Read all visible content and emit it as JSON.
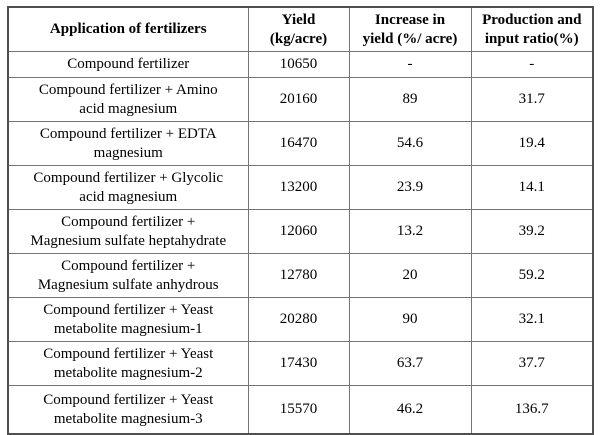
{
  "colors": {
    "background": "#ffffff",
    "text": "#000000",
    "border_outer": "#4f4f4f",
    "border_inner": "#757575"
  },
  "table": {
    "columns": [
      {
        "label": "Application of fertilizers"
      },
      {
        "label": "Yield\n(kg/acre)"
      },
      {
        "label": "Increase in\nyield (%/ acre)"
      },
      {
        "label": "Production and\ninput ratio(%)"
      }
    ],
    "rows": [
      {
        "application": "Compound fertilizer",
        "yield": "10650",
        "increase": "-",
        "ratio": "-"
      },
      {
        "application": "Compound fertilizer + Amino\nacid magnesium",
        "yield": "20160",
        "increase": "89",
        "ratio": "31.7"
      },
      {
        "application": "Compound fertilizer + EDTA\nmagnesium",
        "yield": "16470",
        "increase": "54.6",
        "ratio": "19.4"
      },
      {
        "application": "Compound fertilizer + Glycolic\nacid magnesium",
        "yield": "13200",
        "increase": "23.9",
        "ratio": "14.1"
      },
      {
        "application": "Compound fertilizer +\nMagnesium sulfate heptahydrate",
        "yield": "12060",
        "increase": "13.2",
        "ratio": "39.2"
      },
      {
        "application": "Compound fertilizer +\nMagnesium sulfate anhydrous",
        "yield": "12780",
        "increase": "20",
        "ratio": "59.2"
      },
      {
        "application": "Compound fertilizer + Yeast\nmetabolite magnesium-1",
        "yield": "20280",
        "increase": "90",
        "ratio": "32.1"
      },
      {
        "application": "Compound fertilizer + Yeast\nmetabolite magnesium-2",
        "yield": "17430",
        "increase": "63.7",
        "ratio": "37.7"
      },
      {
        "application": "Compound fertilizer + Yeast\nmetabolite magnesium-3",
        "yield": "15570",
        "increase": "46.2",
        "ratio": "136.7"
      }
    ]
  },
  "chart_data": {
    "type": "table",
    "columns": [
      "Application of fertilizers",
      "Yield (kg/acre)",
      "Increase in yield (%/ acre)",
      "Production and input ratio(%)"
    ],
    "rows": [
      [
        "Compound fertilizer",
        10650,
        null,
        null
      ],
      [
        "Compound fertilizer + Amino acid magnesium",
        20160,
        89,
        31.7
      ],
      [
        "Compound fertilizer + EDTA magnesium",
        16470,
        54.6,
        19.4
      ],
      [
        "Compound fertilizer + Glycolic acid magnesium",
        13200,
        23.9,
        14.1
      ],
      [
        "Compound fertilizer + Magnesium sulfate heptahydrate",
        12060,
        13.2,
        39.2
      ],
      [
        "Compound fertilizer + Magnesium sulfate anhydrous",
        12780,
        20,
        59.2
      ],
      [
        "Compound fertilizer + Yeast metabolite magnesium-1",
        20280,
        90,
        32.1
      ],
      [
        "Compound fertilizer + Yeast metabolite magnesium-2",
        17430,
        63.7,
        37.7
      ],
      [
        "Compound fertilizer + Yeast metabolite magnesium-3",
        15570,
        46.2,
        136.7
      ]
    ]
  }
}
